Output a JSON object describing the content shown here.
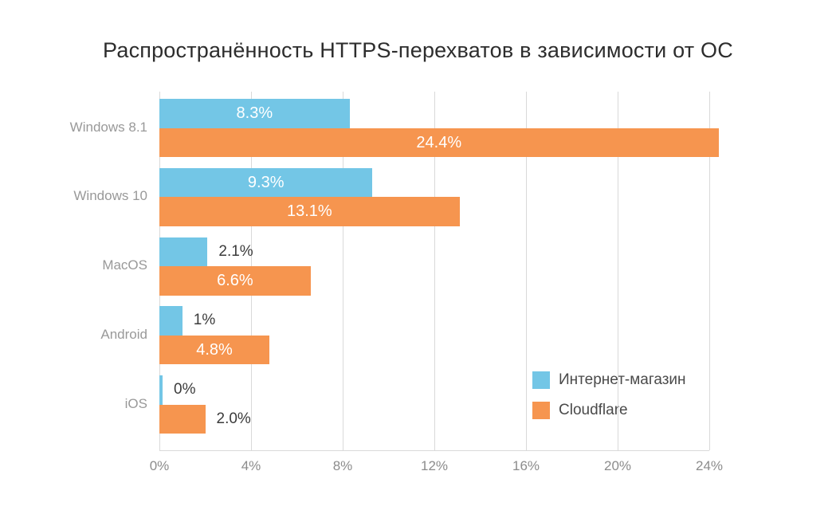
{
  "chart_data": {
    "type": "bar",
    "orientation": "horizontal",
    "title": "Распространённость HTTPS-перехватов в зависимости от ОС",
    "categories": [
      "Windows 8.1",
      "Windows 10",
      "MacOS",
      "Android",
      "iOS"
    ],
    "series": [
      {
        "name": "Интернет-магазин",
        "color": "#73C6E6",
        "values": [
          8.3,
          9.3,
          2.1,
          1,
          0
        ],
        "display_values": [
          "8.3%",
          "9.3%",
          "2.1%",
          "1%",
          "0%"
        ]
      },
      {
        "name": "Cloudflare",
        "color": "#F6954F",
        "values": [
          24.4,
          13.1,
          6.6,
          4.8,
          2.0
        ],
        "display_values": [
          "24.4%",
          "13.1%",
          "6.6%",
          "4.8%",
          "2.0%"
        ]
      }
    ],
    "x_ticks": [
      "0%",
      "4%",
      "8%",
      "12%",
      "16%",
      "20%",
      "24%"
    ],
    "x_tick_values": [
      0,
      4,
      8,
      12,
      16,
      20,
      24
    ],
    "xlim": [
      0,
      24.4
    ],
    "xlabel": "",
    "ylabel": "",
    "grid": "vertical",
    "legend_position": "bottom-right"
  },
  "colors": {
    "background": "#ffffff",
    "grid": "#d9d9d9",
    "title_text": "#2d2d2d",
    "axis_text": "#8c8c8c",
    "category_text": "#999999",
    "value_inside_text": "#ffffff",
    "value_outside_text": "#3b3b3b",
    "legend_text": "#4a4a4a"
  }
}
